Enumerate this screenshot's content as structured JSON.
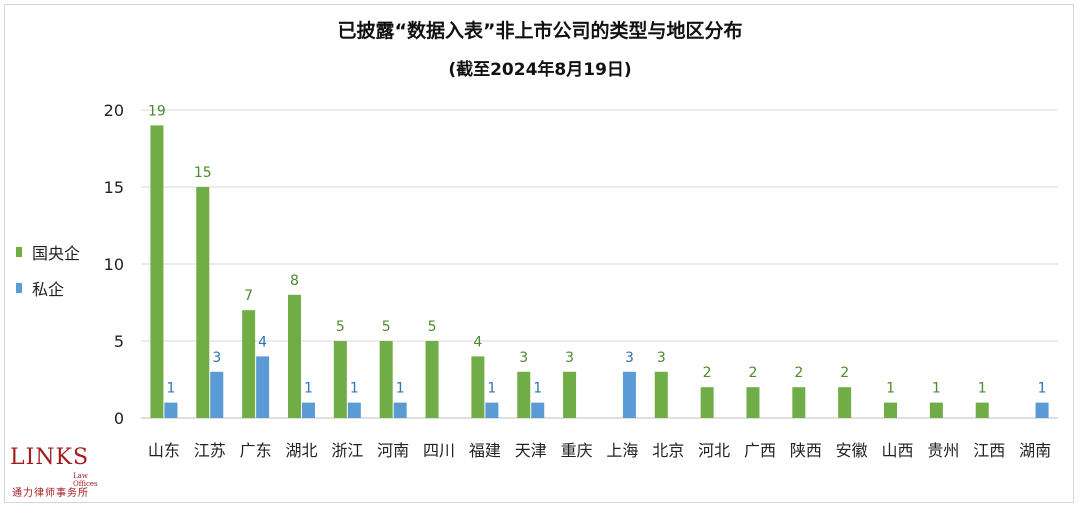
{
  "chart_data": {
    "type": "bar",
    "title": "已披露“数据入表”非上市公司的类型与地区分布",
    "subtitle": "(截至2024年8月19日)",
    "categories": [
      "山东",
      "江苏",
      "广东",
      "湖北",
      "浙江",
      "河南",
      "四川",
      "福建",
      "天津",
      "重庆",
      "上海",
      "北京",
      "河北",
      "广西",
      "陕西",
      "安徽",
      "山西",
      "贵州",
      "江西",
      "湖南"
    ],
    "series": [
      {
        "name": "国央企",
        "color": "#70ad47",
        "values": [
          19,
          15,
          7,
          8,
          5,
          5,
          5,
          4,
          3,
          3,
          null,
          3,
          2,
          2,
          2,
          2,
          1,
          1,
          1,
          null
        ]
      },
      {
        "name": "私企",
        "color": "#5b9bd5",
        "values": [
          1,
          3,
          4,
          1,
          1,
          1,
          null,
          1,
          1,
          null,
          3,
          null,
          null,
          null,
          null,
          null,
          null,
          null,
          null,
          1
        ]
      }
    ],
    "yticks": [
      0,
      5,
      10,
      15,
      20
    ],
    "ylim": [
      0,
      20
    ],
    "grid": true,
    "legend_position": "left"
  },
  "logo": {
    "mark": "LINKS",
    "law": "Law Offices",
    "cn": "通力律师事务所"
  }
}
